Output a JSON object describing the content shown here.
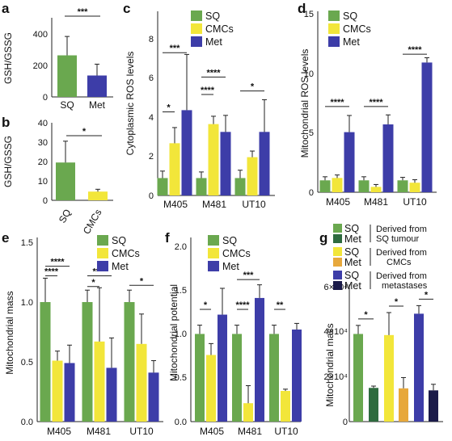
{
  "figure": {
    "colors": {
      "SQ": "#6aa84f",
      "CMCs": "#f2e63a",
      "Met": "#3d3da8",
      "SQ_dark": "#2e6b3f",
      "CMCs_orange": "#e7a83c",
      "Met_dark": "#1b1b4a"
    },
    "panel_a": {
      "label": "a",
      "ylabel": "GSH/GSSG",
      "categories": [
        "SQ",
        "Met"
      ],
      "values": [
        330,
        170
      ],
      "errors": [
        150,
        90
      ],
      "yticks": [
        "0",
        "200",
        "400"
      ],
      "ylim": [
        0,
        500
      ],
      "sig": [
        {
          "text": "***",
          "between": [
            0,
            1
          ]
        }
      ]
    },
    "panel_b": {
      "label": "b",
      "ylabel": "GSH/GSSG",
      "categories": [
        "SQ",
        "CMCs"
      ],
      "values": [
        19.5,
        4.5
      ],
      "errors": [
        11,
        1.2
      ],
      "yticks": [
        "0",
        "10",
        "20",
        "30",
        "40"
      ],
      "ylim": [
        0,
        40
      ],
      "sig": [
        {
          "text": "*",
          "between": [
            0,
            1
          ]
        }
      ]
    },
    "legend3": {
      "sq": "SQ",
      "cmcs": "CMCs",
      "met": "Met"
    },
    "panel_c": {
      "label": "c",
      "ylabel": "Cytoplasmic ROS levels",
      "groups": [
        "M405",
        "M481",
        "UT10"
      ],
      "series": [
        {
          "name": "SQ",
          "values": [
            1,
            1,
            1
          ],
          "errors": [
            0.4,
            0.35,
            0.45
          ]
        },
        {
          "name": "CMCs",
          "values": [
            3,
            4.1,
            2.2
          ],
          "errors": [
            0.9,
            0.45,
            0.35
          ]
        },
        {
          "name": "Met",
          "values": [
            4.9,
            3.65,
            3.65
          ],
          "errors": [
            3.2,
            0.95,
            1.85
          ]
        }
      ],
      "yticks": [
        "0",
        "2",
        "4",
        "6",
        "8"
      ],
      "ylim": [
        0,
        9
      ],
      "sig": [
        {
          "text": "***",
          "g1": 0,
          "s1": 0,
          "g2": 0,
          "s2": 2,
          "y": 8.2
        },
        {
          "text": "*",
          "g1": 0,
          "s1": 0,
          "g2": 0,
          "s2": 1,
          "y": 4.8
        },
        {
          "text": "****",
          "g1": 1,
          "s1": 0,
          "g2": 1,
          "s2": 2,
          "y": 6.8
        },
        {
          "text": "****",
          "g1": 1,
          "s1": 0,
          "g2": 1,
          "s2": 1,
          "y": 5.8
        },
        {
          "text": "*",
          "g1": 2,
          "s1": 0,
          "g2": 2,
          "s2": 2,
          "y": 6.0
        }
      ]
    },
    "panel_d": {
      "label": "d",
      "ylabel": "Mitochondrial ROS levels",
      "groups": [
        "M405",
        "M481",
        "UT10"
      ],
      "series": [
        {
          "name": "SQ",
          "values": [
            1,
            1,
            1
          ],
          "errors": [
            0.3,
            0.3,
            0.25
          ]
        },
        {
          "name": "CMCs",
          "values": [
            1.2,
            0.45,
            0.8
          ],
          "errors": [
            0.25,
            0.2,
            0.25
          ]
        },
        {
          "name": "Met",
          "values": [
            5.05,
            5.7,
            10.9
          ],
          "errors": [
            1.4,
            0.8,
            0.4
          ]
        }
      ],
      "yticks": [
        "0",
        "5",
        "10",
        "15"
      ],
      "ylim": [
        0,
        15
      ],
      "sig": [
        {
          "text": "****",
          "g1": 0,
          "s1": 0,
          "g2": 0,
          "s2": 2,
          "y": 7.2
        },
        {
          "text": "****",
          "g1": 1,
          "s1": 0,
          "g2": 1,
          "s2": 2,
          "y": 7.2
        },
        {
          "text": "****",
          "g1": 2,
          "s1": 0,
          "g2": 2,
          "s2": 2,
          "y": 11.6
        }
      ]
    },
    "panel_e": {
      "label": "e",
      "ylabel": "Mitochondrial mass",
      "groups": [
        "M405",
        "M481",
        "UT10"
      ],
      "series": [
        {
          "name": "SQ",
          "values": [
            1.0,
            1.0,
            1.0
          ],
          "errors": [
            0.2,
            0.1,
            0.1
          ]
        },
        {
          "name": "CMCs",
          "values": [
            0.51,
            0.67,
            0.65
          ],
          "errors": [
            0.08,
            0.45,
            0.25
          ]
        },
        {
          "name": "Met",
          "values": [
            0.49,
            0.45,
            0.41
          ],
          "errors": [
            0.15,
            0.25,
            0.1
          ]
        }
      ],
      "yticks": [
        "0.0",
        "0.5",
        "1.0",
        "1.5"
      ],
      "ylim": [
        0,
        1.5
      ],
      "sig": [
        {
          "text": "****",
          "g1": 0,
          "s1": 0,
          "g2": 0,
          "s2": 2,
          "y": 1.3
        },
        {
          "text": "****",
          "g1": 0,
          "s1": 0,
          "g2": 0,
          "s2": 1,
          "y": 1.22
        },
        {
          "text": "****",
          "g1": 1,
          "s1": 0,
          "g2": 1,
          "s2": 2,
          "y": 1.22
        },
        {
          "text": "*",
          "g1": 1,
          "s1": 0,
          "g2": 1,
          "s2": 1,
          "y": 1.13
        },
        {
          "text": "*",
          "g1": 2,
          "s1": 0,
          "g2": 2,
          "s2": 2,
          "y": 1.14
        }
      ]
    },
    "panel_f": {
      "label": "f",
      "ylabel": "Mitochondrial potential",
      "groups": [
        "M405",
        "M481",
        "UT10"
      ],
      "series": [
        {
          "name": "SQ",
          "values": [
            1.0,
            1.0,
            1.0
          ],
          "errors": [
            0.1,
            0.1,
            0.1
          ]
        },
        {
          "name": "CMCs",
          "values": [
            0.76,
            0.21,
            0.35
          ],
          "errors": [
            0.13,
            0.2,
            0.02
          ]
        },
        {
          "name": "Met",
          "values": [
            1.22,
            1.41,
            1.05
          ],
          "errors": [
            0.3,
            0.15,
            0.07
          ]
        }
      ],
      "yticks": [
        "0.0",
        "0.5",
        "1.0",
        "1.5",
        "2.0"
      ],
      "ylim": [
        0,
        2.1
      ],
      "sig": [
        {
          "text": "*",
          "g1": 0,
          "s1": 0,
          "g2": 0,
          "s2": 1,
          "y": 1.28
        },
        {
          "text": "***",
          "g1": 1,
          "s1": 0,
          "g2": 1,
          "s2": 2,
          "y": 1.62
        },
        {
          "text": "****",
          "g1": 1,
          "s1": 0,
          "g2": 1,
          "s2": 1,
          "y": 1.28
        },
        {
          "text": "**",
          "g1": 2,
          "s1": 0,
          "g2": 2,
          "s2": 1,
          "y": 1.28
        }
      ]
    },
    "panel_g": {
      "label": "g",
      "ylabel": "Mitochondrial mass",
      "legend": [
        {
          "sq": "SQ",
          "met": "Met",
          "desc1": "Derived from",
          "desc2": "SQ tumour"
        },
        {
          "sq": "SQ",
          "met": "Met",
          "desc1": "Derived from",
          "desc2": "CMCs"
        },
        {
          "sq": "SQ",
          "met": "Met",
          "desc1": "Derived from",
          "desc2": "metastases"
        }
      ],
      "values": [
        39000,
        15000,
        38500,
        14800,
        48000,
        13900
      ],
      "errors": [
        3800,
        800,
        10000,
        4800,
        3600,
        2700
      ],
      "yticks": [
        "0",
        "2×10⁴",
        "4×10⁴",
        "6×10⁴"
      ],
      "ylim": [
        0,
        60000
      ],
      "sig": [
        {
          "text": "*",
          "b1": 0,
          "b2": 1
        },
        {
          "text": "*",
          "b1": 2,
          "b2": 3
        },
        {
          "text": "*",
          "b1": 4,
          "b2": 5
        }
      ]
    }
  }
}
